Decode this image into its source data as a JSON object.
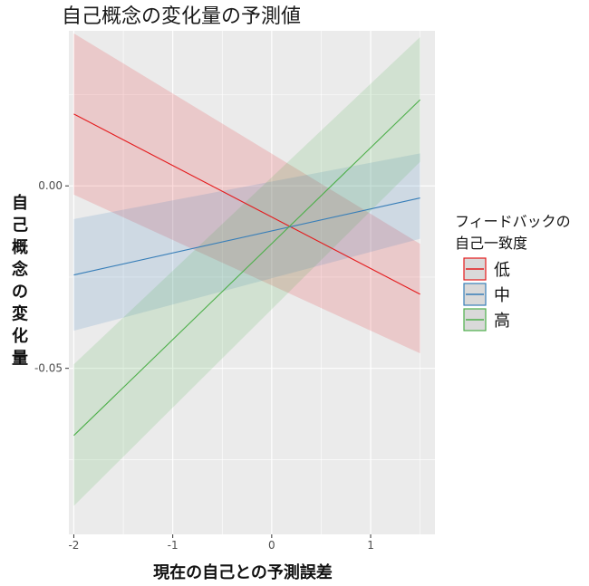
{
  "chart_data": {
    "type": "line",
    "title": "自己概念の変化量の予測値",
    "xlabel": "現在の自己との予測誤差",
    "ylabel": "自己概念の変化量",
    "xlim": [
      -2.05,
      1.65
    ],
    "ylim": [
      -0.0955,
      0.0425
    ],
    "xticks": [
      -2,
      -1,
      0,
      1
    ],
    "xtick_labels": [
      "-2",
      "-1",
      "0",
      "1"
    ],
    "yticks": [
      0.0,
      -0.05
    ],
    "ytick_labels": [
      "0.00",
      "-0.05"
    ],
    "grid": true,
    "legend": {
      "title_lines": [
        "フィードバックの",
        "自己一致度"
      ],
      "placement": "right"
    },
    "series": [
      {
        "name": "低",
        "color": "#E41A1C",
        "x": [
          -2,
          1.5
        ],
        "y": [
          0.0197,
          -0.0297
        ],
        "lower": [
          -0.0024,
          -0.0459
        ],
        "upper": [
          0.0418,
          -0.0159
        ]
      },
      {
        "name": "中",
        "color": "#377EB8",
        "x": [
          -2,
          1.5
        ],
        "y": [
          -0.0244,
          -0.0033
        ],
        "lower": [
          -0.0397,
          -0.0145
        ],
        "upper": [
          -0.0091,
          0.0089
        ]
      },
      {
        "name": "高",
        "color": "#4DAF4A",
        "x": [
          -2,
          1.5
        ],
        "y": [
          -0.0684,
          0.0236
        ],
        "lower": [
          -0.0877,
          0.0066
        ],
        "upper": [
          -0.0489,
          0.0408
        ]
      }
    ]
  }
}
